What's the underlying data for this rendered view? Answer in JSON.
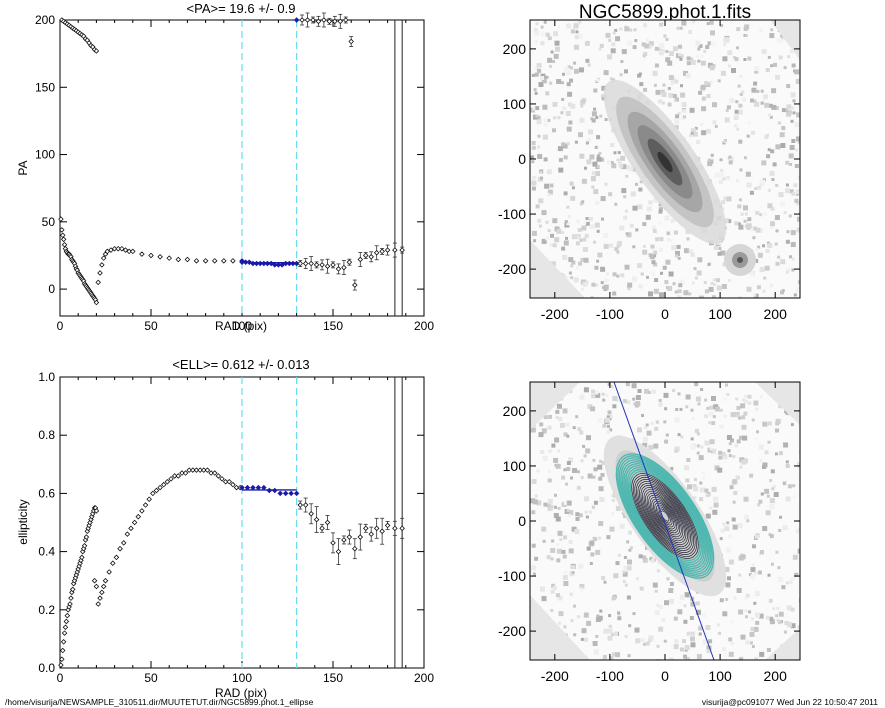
{
  "footer": {
    "path": "/home/visurija/NEWSAMPLE_310511.dir/MUUTETUT.dir/NGC5899.phot.1_ellipse",
    "stamp": "visurija@pc091077  Wed Jun 22 10:50:47 2011"
  },
  "pa_panel": {
    "title": "<PA>=  19.6 +/-   0.9",
    "ylabel": "PA",
    "xlabel": "RAD (pix)",
    "xticks": [
      "0",
      "50",
      "100",
      "150",
      "200"
    ],
    "yticks": [
      "0",
      "50",
      "100",
      "150",
      "200"
    ]
  },
  "ell_panel": {
    "title": "<ELL>= 0.612 +/-  0.013",
    "ylabel": "ellipticity",
    "xlabel": "RAD (pix)",
    "xticks": [
      "0",
      "50",
      "100",
      "150",
      "200"
    ],
    "yticks": [
      "0.0",
      "0.2",
      "0.4",
      "0.6",
      "0.8",
      "1.0"
    ]
  },
  "image_top": {
    "title": "NGC5899.phot.1.fits",
    "xticks": [
      "-200",
      "-100",
      "0",
      "100",
      "200"
    ],
    "yticks": [
      "200",
      "100",
      "0",
      "-100",
      "-200"
    ]
  },
  "image_bottom": {
    "xticks": [
      "-200",
      "-100",
      "0",
      "100",
      "200"
    ],
    "yticks": [
      "200",
      "100",
      "0",
      "-100",
      "-200"
    ]
  },
  "colors": {
    "fit_range": "#66ddee",
    "fit_points": "#1a1aaa",
    "contour_outer": "#4fb8b0",
    "contour_inner": "#222233",
    "major_axis": "#2233bb"
  },
  "chart_data": [
    {
      "type": "scatter",
      "panel": "pa",
      "xlabel": "RAD (pix)",
      "ylabel": "PA",
      "xlim": [
        0,
        200
      ],
      "ylim": [
        -20,
        200
      ],
      "fit_range": [
        100,
        130
      ],
      "fit_value": 19.6,
      "vlines": [
        184,
        188
      ],
      "series": [
        {
          "x": [
            0.5,
            1,
            1.5,
            2,
            2.5,
            3,
            3.5,
            4,
            4.5,
            5,
            5.5,
            6,
            6.5,
            7,
            7.5,
            8,
            8.5,
            9,
            9.5,
            10,
            10.5,
            11,
            11.5,
            12,
            12.5,
            13,
            13.5,
            14,
            14.5,
            15,
            15.5,
            16,
            16.5,
            17,
            17.5,
            18,
            18.5,
            19,
            19.5,
            20
          ],
          "y": [
            52,
            44,
            40,
            37,
            33,
            30,
            28,
            27,
            26,
            26,
            25,
            24,
            22,
            21,
            20,
            19,
            17,
            15,
            14,
            12,
            11,
            10,
            9,
            8,
            7,
            6,
            4,
            3,
            2,
            1,
            0,
            -1,
            -2,
            -3,
            -4,
            -5,
            -6,
            -7,
            -8,
            -10
          ]
        },
        {
          "x": [
            1,
            2,
            3,
            4,
            5,
            6,
            7,
            8,
            9,
            10,
            11,
            12,
            13,
            14,
            15,
            16,
            17,
            18,
            19,
            20
          ],
          "y": [
            200,
            199,
            198,
            197,
            196,
            195,
            194,
            193,
            192,
            191,
            190,
            189,
            188,
            186,
            185,
            183,
            181,
            180,
            178,
            177
          ]
        },
        {
          "x": [
            21,
            22,
            23,
            24,
            25,
            26,
            28,
            30,
            32,
            34,
            36,
            38,
            40,
            45,
            50,
            55,
            60,
            65,
            70,
            75,
            80,
            85,
            90,
            95,
            100
          ],
          "y": [
            5,
            12,
            18,
            23,
            26,
            28,
            29,
            30,
            30,
            30,
            29,
            28,
            28,
            26,
            25,
            24,
            23,
            22,
            22,
            21,
            21,
            21,
            21,
            21,
            21
          ]
        },
        {
          "x": [
            100,
            102,
            104,
            106,
            108,
            110,
            112,
            114,
            116,
            118,
            120,
            122,
            124,
            126,
            128,
            130
          ],
          "y": [
            20,
            20,
            20,
            19,
            19,
            19,
            19,
            19,
            19,
            18,
            18,
            18,
            19,
            19,
            19,
            19
          ]
        },
        {
          "x": [
            132,
            135,
            138,
            141,
            144,
            147,
            150,
            153,
            156,
            159,
            162,
            165,
            168,
            171,
            174,
            177,
            180,
            184,
            188
          ],
          "y": [
            19,
            19,
            19,
            18,
            18,
            17,
            18,
            15,
            16,
            20,
            3,
            22,
            25,
            24,
            27,
            28,
            29,
            29,
            29
          ]
        },
        {
          "x": [
            130,
            133,
            136,
            139,
            142,
            145,
            148,
            151,
            154,
            157,
            160
          ],
          "y": [
            200,
            200,
            200,
            200,
            199,
            200,
            199,
            199,
            199,
            200,
            184
          ]
        }
      ]
    },
    {
      "type": "scatter",
      "panel": "ellipticity",
      "xlabel": "RAD (pix)",
      "ylabel": "ellipticity",
      "xlim": [
        0,
        200
      ],
      "ylim": [
        0,
        1
      ],
      "fit_range": [
        100,
        130
      ],
      "fit_value": 0.612,
      "vlines": [
        184,
        188
      ],
      "series": [
        {
          "x": [
            0.5,
            1,
            1.5,
            2,
            2.5,
            3,
            3.5,
            4,
            4.5,
            5,
            5.5,
            6,
            6.5,
            7,
            7.5,
            8,
            8.5,
            9,
            9.5,
            10,
            10.5,
            11,
            11.5,
            12,
            12.5,
            13,
            13.5,
            14,
            14.5,
            15,
            15.5,
            16,
            16.5,
            17,
            17.5,
            18,
            18.5,
            19,
            19.5,
            20
          ],
          "y": [
            0.01,
            0.03,
            0.06,
            0.09,
            0.12,
            0.14,
            0.16,
            0.18,
            0.2,
            0.21,
            0.22,
            0.24,
            0.26,
            0.27,
            0.29,
            0.3,
            0.31,
            0.32,
            0.33,
            0.34,
            0.35,
            0.36,
            0.37,
            0.38,
            0.4,
            0.41,
            0.42,
            0.44,
            0.45,
            0.47,
            0.48,
            0.49,
            0.5,
            0.51,
            0.52,
            0.53,
            0.54,
            0.55,
            0.55,
            0.54
          ]
        },
        {
          "x": [
            19,
            20,
            21,
            22,
            23,
            24,
            25,
            27,
            29,
            31,
            33,
            35,
            37,
            39,
            41,
            43,
            45,
            47,
            49,
            51,
            53,
            55,
            57,
            59,
            61,
            63,
            65,
            67,
            69,
            71,
            73,
            75,
            77,
            79,
            81,
            83,
            85,
            87,
            89,
            91,
            93,
            95,
            97,
            99
          ],
          "y": [
            0.3,
            0.28,
            0.22,
            0.24,
            0.26,
            0.28,
            0.3,
            0.33,
            0.36,
            0.38,
            0.41,
            0.43,
            0.46,
            0.48,
            0.5,
            0.52,
            0.54,
            0.56,
            0.58,
            0.6,
            0.61,
            0.62,
            0.63,
            0.64,
            0.65,
            0.66,
            0.66,
            0.67,
            0.67,
            0.68,
            0.68,
            0.68,
            0.68,
            0.68,
            0.68,
            0.67,
            0.67,
            0.66,
            0.65,
            0.64,
            0.64,
            0.63,
            0.62,
            0.62
          ]
        },
        {
          "x": [
            100,
            103,
            106,
            109,
            112,
            115,
            118,
            121,
            124,
            127,
            130
          ],
          "y": [
            0.62,
            0.62,
            0.62,
            0.62,
            0.62,
            0.61,
            0.61,
            0.6,
            0.6,
            0.6,
            0.6
          ]
        },
        {
          "x": [
            132,
            135,
            138,
            141,
            144,
            147,
            150,
            153,
            156,
            159,
            162,
            165,
            168,
            171,
            174,
            177,
            180,
            184,
            188
          ],
          "y": [
            0.56,
            0.56,
            0.53,
            0.51,
            0.48,
            0.5,
            0.43,
            0.4,
            0.44,
            0.45,
            0.41,
            0.45,
            0.48,
            0.46,
            0.48,
            0.47,
            0.49,
            0.48,
            0.48
          ]
        }
      ]
    }
  ]
}
